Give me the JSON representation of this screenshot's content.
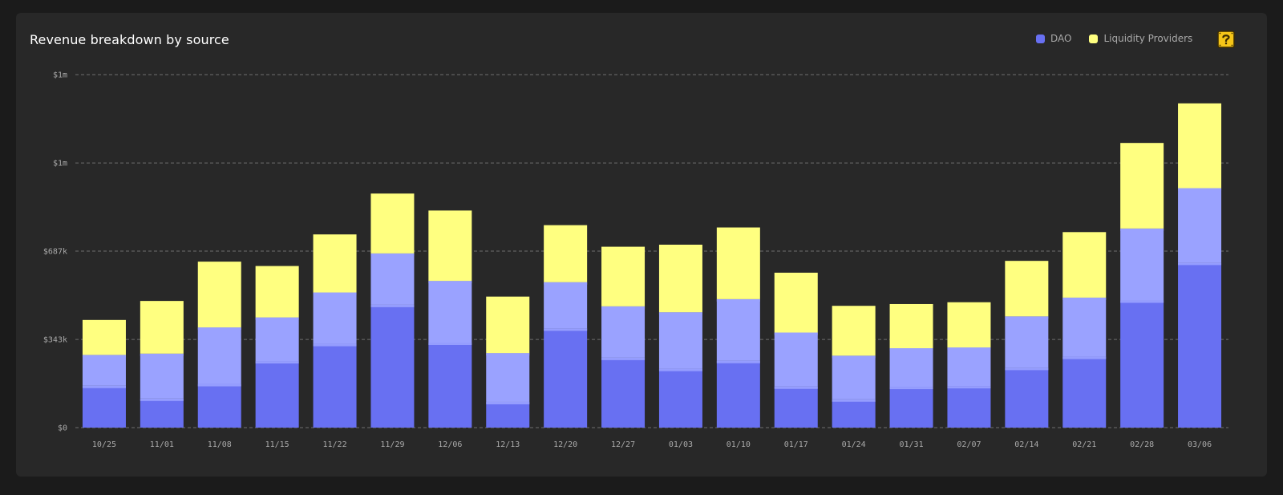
{
  "title": "Revenue breakdown by source",
  "legend": [
    {
      "label": "DAO",
      "color": "#6870f2"
    },
    {
      "label": "Liquidity Providers",
      "color": "#ffff80"
    }
  ],
  "help_icon": "question-block-icon",
  "colors": {
    "dao": "#6870f2",
    "dao_light": "#9aa2ff",
    "lp": "#ffff80",
    "lp_cap": "#eeee70",
    "grid": "#6e6e6e",
    "background": "#282828"
  },
  "chart_data": {
    "type": "bar",
    "stacked": true,
    "y_tick_labels": [
      "$0",
      "$343k",
      "$687k",
      "$1m",
      "$1m"
    ],
    "y_tick_values": [
      0,
      343000,
      687000,
      1030000,
      1374000
    ],
    "ylim": [
      0,
      1374000
    ],
    "grid": true,
    "legend_position": "top-right",
    "categories": [
      "10/25",
      "11/01",
      "11/08",
      "11/15",
      "11/22",
      "11/29",
      "12/06",
      "12/13",
      "12/20",
      "12/27",
      "01/03",
      "01/10",
      "01/17",
      "01/24",
      "01/31",
      "02/07",
      "02/14",
      "02/21",
      "02/28",
      "03/06"
    ],
    "series": [
      {
        "name": "DAO",
        "color": "#6870f2",
        "values": [
          163000,
          113000,
          170000,
          259000,
          326000,
          478000,
          331000,
          100000,
          386000,
          272000,
          229000,
          260000,
          160000,
          110000,
          159000,
          162000,
          233000,
          276000,
          495000,
          642000
        ]
      },
      {
        "name": "DAO",
        "color": "#9aa2ff",
        "values": [
          120000,
          175000,
          220000,
          170000,
          200000,
          200000,
          240000,
          190000,
          180000,
          200000,
          220000,
          240000,
          210000,
          170000,
          150000,
          150000,
          200000,
          230000,
          280000,
          290000
        ]
      },
      {
        "name": "Liquidity Providers",
        "color": "#ffff80",
        "values": [
          136000,
          205000,
          256000,
          200000,
          226000,
          233000,
          274000,
          220000,
          222000,
          232000,
          263000,
          279000,
          233000,
          194000,
          172000,
          176000,
          216000,
          255000,
          333000,
          330000
        ]
      }
    ]
  }
}
